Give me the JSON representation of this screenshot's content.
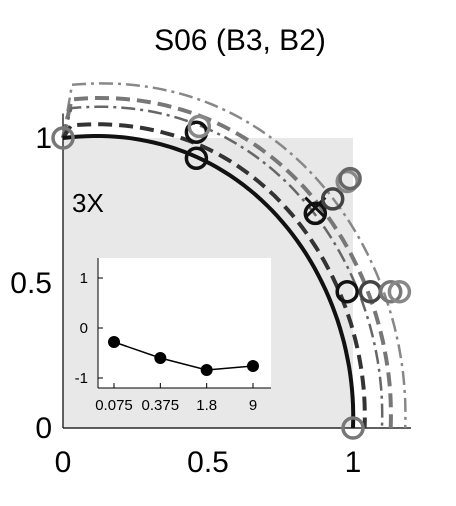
{
  "chart_data": [
    {
      "type": "scatter",
      "title": "S06 (B3, B2)",
      "xlabel": "",
      "ylabel": "",
      "xlim": [
        0,
        1.2
      ],
      "ylim": [
        0,
        1.05
      ],
      "x_ticks": [
        "0",
        "0.5",
        "1"
      ],
      "y_ticks": [
        "0",
        "0.5",
        "1"
      ],
      "x_tick_values": [
        0,
        0.5,
        1
      ],
      "y_tick_values": [
        0,
        0.5,
        1
      ],
      "panel_label": "3X",
      "shaded_region": {
        "x": [
          0,
          1
        ],
        "y": [
          0,
          1
        ],
        "color": "#e8e8e8"
      },
      "curves": [
        {
          "style": "solid",
          "color": "#111111",
          "radius": 1.0
        },
        {
          "style": "dashed",
          "color": "#333333",
          "radius": 1.04
        },
        {
          "style": "dashdot",
          "color": "#666666",
          "radius": 1.1
        },
        {
          "style": "dashed",
          "color": "#777777",
          "radius": 1.13
        },
        {
          "style": "dashdot",
          "color": "#888888",
          "radius": 1.18
        }
      ],
      "points": [
        {
          "x": 0,
          "y": 1.0,
          "color": "#777777",
          "marker": "o"
        },
        {
          "x": 0.46,
          "y": 1.02,
          "color": "#111111",
          "marker": "o"
        },
        {
          "x": 0.47,
          "y": 1.04,
          "color": "#888888",
          "marker": "o"
        },
        {
          "x": 0.46,
          "y": 0.93,
          "color": "#111111",
          "marker": "o"
        },
        {
          "x": 0.87,
          "y": 0.74,
          "color": "#111111",
          "marker": "o"
        },
        {
          "x": 0.87,
          "y": 0.76,
          "color": "#111111",
          "marker": "x"
        },
        {
          "x": 0.93,
          "y": 0.79,
          "color": "#444444",
          "marker": "o"
        },
        {
          "x": 0.98,
          "y": 0.85,
          "color": "#888888",
          "marker": "o"
        },
        {
          "x": 0.99,
          "y": 0.86,
          "color": "#666666",
          "marker": "o"
        },
        {
          "x": 0.98,
          "y": 0.47,
          "color": "#111111",
          "marker": "o"
        },
        {
          "x": 1.06,
          "y": 0.47,
          "color": "#444444",
          "marker": "o"
        },
        {
          "x": 1.13,
          "y": 0.47,
          "color": "#777777",
          "marker": "o"
        },
        {
          "x": 1.16,
          "y": 0.47,
          "color": "#888888",
          "marker": "o"
        },
        {
          "x": 1.0,
          "y": 0.0,
          "color": "#777777",
          "marker": "o"
        }
      ]
    },
    {
      "type": "line",
      "title": "",
      "xlabel": "",
      "ylabel": "",
      "categories": [
        "0.075",
        "0.375",
        "1.8",
        "9"
      ],
      "y_ticks": [
        "-1",
        "0",
        "1"
      ],
      "y_tick_values": [
        -1,
        0,
        1
      ],
      "ylim": [
        -1.2,
        1.4
      ],
      "series": [
        {
          "values": [
            -0.28,
            -0.6,
            -0.84,
            -0.76
          ],
          "color": "#000000"
        }
      ]
    }
  ]
}
